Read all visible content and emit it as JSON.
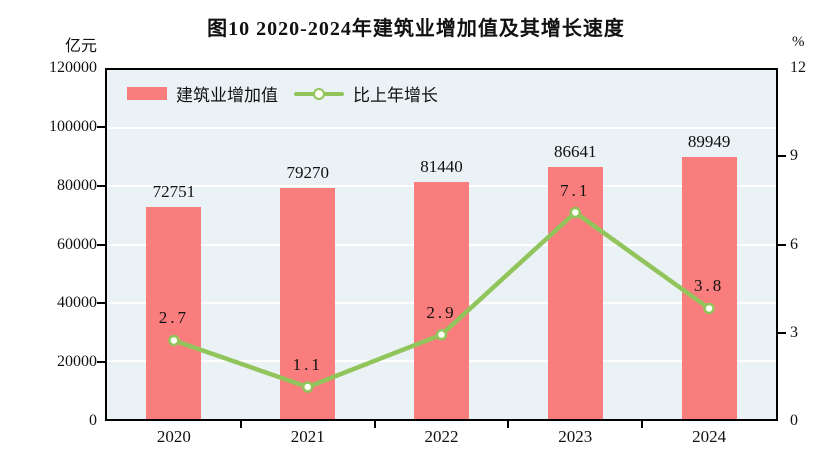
{
  "title": "图10  2020-2024年建筑业增加值及其增长速度",
  "legend": {
    "bar_label": "建筑业增加值",
    "line_label": "比上年增长"
  },
  "left_axis": {
    "unit": "亿元",
    "min": 0,
    "max": 120000,
    "ticks": [
      "0",
      "20000",
      "40000",
      "60000",
      "80000",
      "100000",
      "120000"
    ]
  },
  "right_axis": {
    "unit": "%",
    "min": 0,
    "max": 12,
    "ticks": [
      "0",
      "3",
      "6",
      "9",
      "12"
    ]
  },
  "chart_data": {
    "type": "bar",
    "subtype": "bar+line-combo",
    "title": "图10  2020-2024年建筑业增加值及其增长速度",
    "categories": [
      "2020",
      "2021",
      "2022",
      "2023",
      "2024"
    ],
    "series": [
      {
        "name": "建筑业增加值",
        "type": "bar",
        "axis": "left",
        "values": [
          72751,
          79270,
          81440,
          86641,
          89949
        ],
        "labels": [
          "72751",
          "79270",
          "81440",
          "86641",
          "89949"
        ]
      },
      {
        "name": "比上年增长",
        "type": "line",
        "axis": "right",
        "values": [
          2.7,
          1.1,
          2.9,
          7.1,
          3.8
        ],
        "labels": [
          "2.7",
          "1.1",
          "2.9",
          "7.1",
          "3.8"
        ]
      }
    ],
    "xlabel": "",
    "ylabel_left": "亿元",
    "ylabel_right": "%",
    "ylim_left": [
      0,
      120000
    ],
    "ylim_right": [
      0,
      12
    ],
    "grid": true,
    "legend_position": "top-left-inside"
  },
  "colors": {
    "bar": "#FA7D7D",
    "line": "#92C45C",
    "marker_fill": "#FDFFF2",
    "plot_bg": "#EAF2F5",
    "grid": "#FFFFFF",
    "frame": "#000000",
    "text": "#111111"
  }
}
